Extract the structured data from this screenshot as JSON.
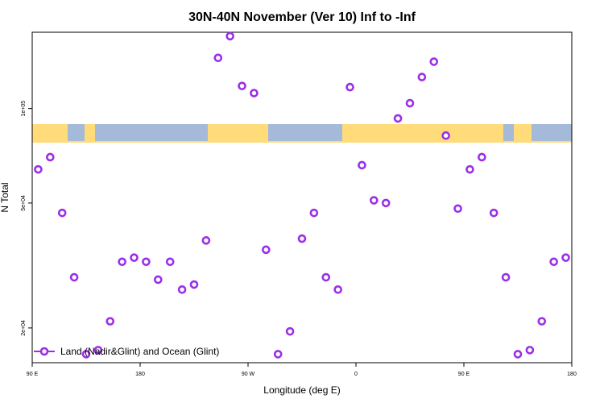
{
  "chart_data": {
    "type": "scatter",
    "title": "30N-40N November (Ver 10)   Inf to -Inf",
    "xlabel": "Longitude (deg E)",
    "ylabel": "N Total",
    "x_ticks": [
      {
        "value": 90,
        "label": "90 E"
      },
      {
        "value": 180,
        "label": "180"
      },
      {
        "value": 270,
        "label": "90 W"
      },
      {
        "value": 360,
        "label": "0"
      },
      {
        "value": 450,
        "label": "90 E"
      },
      {
        "value": 540,
        "label": "180"
      }
    ],
    "y_ticks": [
      {
        "value": 20000,
        "label": "2e+04"
      },
      {
        "value": 50000,
        "label": "5e+04"
      },
      {
        "value": 100000,
        "label": "1e+05"
      }
    ],
    "xlim": [
      90,
      540
    ],
    "ylim": [
      15500,
      175000
    ],
    "y_scale": "log",
    "grid": false,
    "legend_position": "bottom-left",
    "marker_color": "#9b30e8",
    "land_color": "#ffdb7a",
    "ocean_color": "#a5b9d9",
    "series": [
      {
        "name": "Land (Nadir&Glint) and Ocean (Glint)",
        "x": [
          95,
          105,
          115,
          125,
          135,
          145,
          155,
          165,
          175,
          185,
          195,
          205,
          215,
          225,
          235,
          245,
          255,
          265,
          275,
          285,
          295,
          305,
          315,
          325,
          335,
          345,
          355,
          365,
          375,
          385,
          395,
          405,
          415,
          425,
          435,
          445,
          455,
          465,
          475,
          485,
          495,
          505,
          515,
          525,
          535
        ],
        "y": [
          64000,
          70000,
          46500,
          29000,
          16500,
          17000,
          21000,
          32500,
          33500,
          32500,
          28500,
          32500,
          26500,
          27500,
          38000,
          145000,
          170000,
          118000,
          112000,
          35500,
          16500,
          19500,
          38500,
          46500,
          29000,
          26500,
          117000,
          66000,
          51000,
          50000,
          93000,
          104000,
          126000,
          141000,
          82000,
          48000,
          64000,
          70000,
          46500,
          29000,
          16500,
          17000,
          21000,
          32500,
          33500
        ]
      }
    ]
  }
}
